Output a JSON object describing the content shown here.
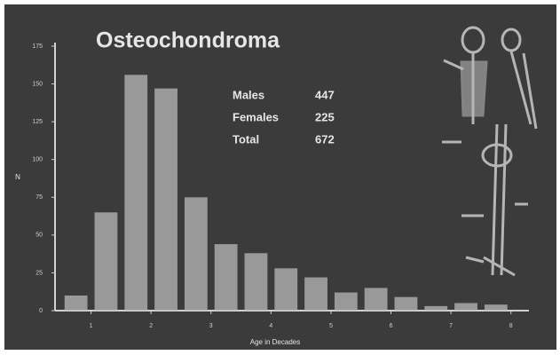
{
  "chart_data": {
    "type": "histogram",
    "title": "Osteochondroma",
    "x_label": "Age in Decades",
    "y_label": "N",
    "bins": [
      0.5,
      1,
      1.5,
      2,
      2.5,
      3,
      3.5,
      4,
      4.5,
      5,
      5.5,
      6,
      6.5,
      7,
      7.5,
      8
    ],
    "values": [
      10,
      65,
      156,
      147,
      75,
      44,
      38,
      28,
      22,
      12,
      15,
      9,
      3,
      5,
      4
    ],
    "color": "#b9b9b9",
    "xlim": [
      0.4,
      8.3
    ],
    "xticks": [
      1,
      2,
      3,
      4,
      5,
      6,
      7,
      8
    ],
    "ylim": [
      0,
      175
    ],
    "yticks": [
      0,
      25,
      50,
      75,
      100,
      125,
      150,
      175
    ],
    "stats": [
      {
        "label": "Males",
        "value": 447
      },
      {
        "label": "Females",
        "value": 225
      },
      {
        "label": "Total",
        "value": 672
      }
    ]
  }
}
